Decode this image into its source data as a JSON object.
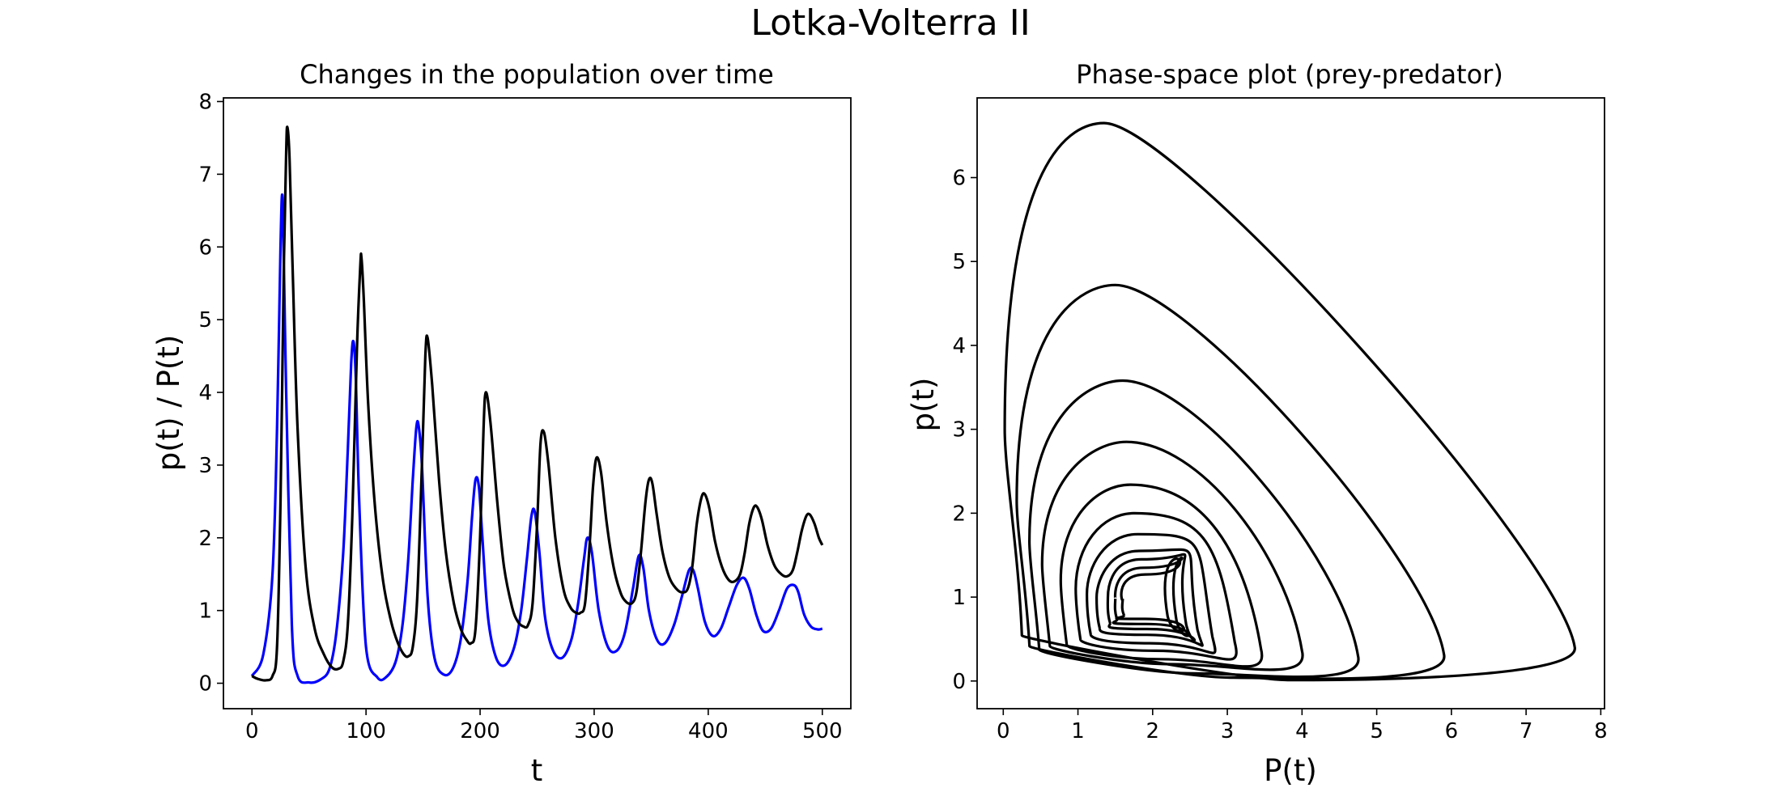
{
  "figure": {
    "title": "Lotka-Volterra II"
  },
  "chart_data": [
    {
      "type": "line",
      "title": "Changes in the population over time",
      "xlabel": "t",
      "ylabel": "p(t) / P(t)",
      "xlim": [
        -25,
        525
      ],
      "ylim": [
        -0.35,
        8.05
      ],
      "xticks": [
        0,
        100,
        200,
        300,
        400,
        500
      ],
      "yticks": [
        0,
        1,
        2,
        3,
        4,
        5,
        6,
        7,
        8
      ],
      "grid": false,
      "series": [
        {
          "color": "#0000ff",
          "x": [
            0,
            10,
            18,
            22,
            25,
            27,
            30,
            35,
            40,
            50,
            60,
            68,
            74,
            80,
            84,
            87,
            89,
            91,
            94,
            100,
            110,
            118,
            126,
            132,
            137,
            141,
            144,
            146,
            149,
            154,
            160,
            168,
            176,
            183,
            189,
            193,
            196,
            199,
            202,
            207,
            214,
            222,
            230,
            236,
            241,
            245,
            248,
            252,
            257,
            264,
            272,
            280,
            286,
            291,
            294,
            298,
            304,
            312,
            320,
            327,
            334,
            339,
            343,
            348,
            355,
            362,
            370,
            377,
            383,
            387,
            391,
            397,
            404,
            411,
            418,
            425,
            431,
            436,
            442,
            448,
            455,
            462,
            469,
            475,
            479,
            484,
            490,
            496,
            500
          ],
          "values": [
            0.1,
            0.4,
            1.5,
            3.5,
            6.0,
            6.6,
            4.0,
            0.8,
            0.1,
            0.01,
            0.05,
            0.2,
            0.7,
            1.8,
            3.2,
            4.4,
            4.7,
            4.2,
            2.5,
            0.5,
            0.08,
            0.09,
            0.3,
            0.8,
            1.7,
            2.8,
            3.5,
            3.55,
            3.0,
            1.2,
            0.35,
            0.12,
            0.2,
            0.6,
            1.4,
            2.3,
            2.8,
            2.7,
            2.0,
            0.9,
            0.35,
            0.25,
            0.5,
            1.0,
            1.7,
            2.3,
            2.35,
            1.8,
            0.9,
            0.45,
            0.35,
            0.6,
            1.1,
            1.7,
            2.0,
            1.8,
            1.0,
            0.5,
            0.45,
            0.7,
            1.3,
            1.75,
            1.6,
            1.0,
            0.6,
            0.55,
            0.8,
            1.2,
            1.55,
            1.55,
            1.3,
            0.85,
            0.65,
            0.75,
            1.05,
            1.35,
            1.45,
            1.3,
            0.95,
            0.72,
            0.75,
            1.0,
            1.3,
            1.35,
            1.25,
            0.95,
            0.78,
            0.74,
            0.75
          ]
        },
        {
          "color": "#000000",
          "x": [
            0,
            5,
            12,
            18,
            22,
            25,
            28,
            30,
            31,
            33,
            36,
            40,
            47,
            55,
            63,
            70,
            76,
            80,
            84,
            88,
            92,
            95,
            96,
            98,
            102,
            108,
            115,
            122,
            128,
            133,
            137,
            141,
            145,
            149,
            152,
            154,
            158,
            164,
            170,
            177,
            183,
            188,
            192,
            196,
            200,
            203,
            205,
            209,
            215,
            221,
            228,
            233,
            238,
            242,
            246,
            250,
            253,
            256,
            260,
            266,
            273,
            279,
            284,
            288,
            292,
            296,
            299,
            302,
            306,
            311,
            317,
            323,
            328,
            333,
            337,
            341,
            345,
            348,
            351,
            355,
            360,
            366,
            372,
            377,
            382,
            386,
            390,
            394,
            397,
            401,
            406,
            412,
            418,
            423,
            428,
            432,
            436,
            440,
            443,
            447,
            452,
            458,
            464,
            469,
            474,
            478,
            482,
            486,
            489,
            493,
            497,
            500
          ],
          "values": [
            0.1,
            0.06,
            0.04,
            0.1,
            0.5,
            2.5,
            5.8,
            7.3,
            7.65,
            7.2,
            5.5,
            3.5,
            1.6,
            0.75,
            0.4,
            0.22,
            0.2,
            0.3,
            0.8,
            2.3,
            4.6,
            5.75,
            5.85,
            5.3,
            3.8,
            2.4,
            1.4,
            0.85,
            0.55,
            0.4,
            0.37,
            0.5,
            1.2,
            3.0,
            4.5,
            4.75,
            4.1,
            2.8,
            1.8,
            1.1,
            0.75,
            0.6,
            0.55,
            0.75,
            2.0,
            3.5,
            4.0,
            3.6,
            2.5,
            1.6,
            1.05,
            0.85,
            0.78,
            0.8,
            1.1,
            2.2,
            3.3,
            3.45,
            3.0,
            2.0,
            1.3,
            1.05,
            0.97,
            0.97,
            1.1,
            1.9,
            2.7,
            3.1,
            2.9,
            2.2,
            1.6,
            1.25,
            1.12,
            1.1,
            1.25,
            1.8,
            2.5,
            2.8,
            2.75,
            2.3,
            1.8,
            1.45,
            1.3,
            1.25,
            1.3,
            1.6,
            2.2,
            2.55,
            2.6,
            2.4,
            1.95,
            1.6,
            1.42,
            1.4,
            1.5,
            1.8,
            2.2,
            2.42,
            2.42,
            2.25,
            1.9,
            1.62,
            1.5,
            1.47,
            1.55,
            1.8,
            2.1,
            2.3,
            2.32,
            2.2,
            2.0,
            1.9
          ]
        }
      ]
    },
    {
      "type": "line",
      "title": "Phase-space plot (prey-predator)",
      "xlabel": "P(t)",
      "ylabel": "p(t)",
      "xlim": [
        -0.35,
        8.05
      ],
      "ylim": [
        -0.33,
        6.95
      ],
      "xticks": [
        0,
        1,
        2,
        3,
        4,
        5,
        6,
        7,
        8
      ],
      "yticks": [
        0,
        1,
        2,
        3,
        4,
        5,
        6
      ],
      "grid": false,
      "series": [
        {
          "color": "#000000",
          "loops": [
            {
              "xmin": 0.02,
              "xmax": 7.65,
              "ymin": 0.01,
              "ymax": 6.65,
              "xpeak": 1.35
            },
            {
              "xmin": 0.18,
              "xmax": 5.9,
              "ymin": 0.04,
              "ymax": 4.72,
              "xpeak": 1.5
            },
            {
              "xmin": 0.35,
              "xmax": 4.75,
              "ymin": 0.09,
              "ymax": 3.58,
              "xpeak": 1.6
            },
            {
              "xmin": 0.52,
              "xmax": 4.0,
              "ymin": 0.2,
              "ymax": 2.85,
              "xpeak": 1.65
            },
            {
              "xmin": 0.77,
              "xmax": 3.45,
              "ymin": 0.26,
              "ymax": 2.34,
              "xpeak": 1.7
            },
            {
              "xmin": 0.97,
              "xmax": 3.1,
              "ymin": 0.36,
              "ymax": 2.0,
              "xpeak": 1.75
            },
            {
              "xmin": 1.12,
              "xmax": 2.8,
              "ymin": 0.45,
              "ymax": 1.75,
              "xpeak": 1.8
            },
            {
              "xmin": 1.25,
              "xmax": 2.6,
              "ymin": 0.55,
              "ymax": 1.55,
              "xpeak": 1.82
            },
            {
              "xmin": 1.4,
              "xmax": 2.45,
              "ymin": 0.62,
              "ymax": 1.45,
              "xpeak": 1.85
            },
            {
              "xmin": 1.5,
              "xmax": 2.32,
              "ymin": 0.68,
              "ymax": 1.35,
              "xpeak": 1.88
            },
            {
              "xmin": 1.6,
              "xmax": 2.2,
              "ymin": 0.74,
              "ymax": 1.27,
              "xpeak": 1.9
            }
          ]
        }
      ]
    }
  ]
}
